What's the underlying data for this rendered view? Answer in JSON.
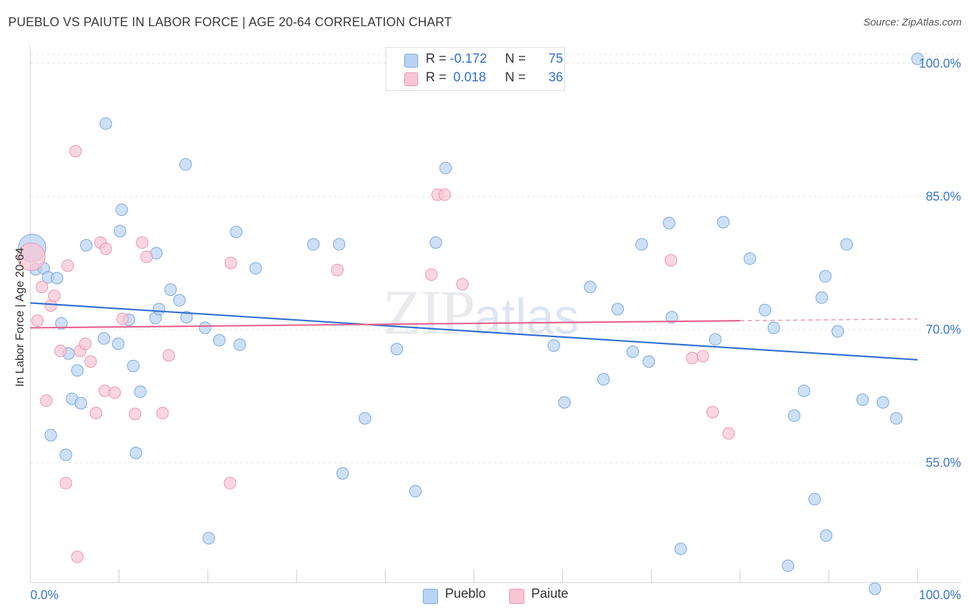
{
  "header": {
    "title": "PUEBLO VS PAIUTE IN LABOR FORCE | AGE 20-64 CORRELATION CHART",
    "source": "Source: ZipAtlas.com"
  },
  "watermark": {
    "zip": "ZIP",
    "atlas": "atlas"
  },
  "legend": {
    "rows": [
      {
        "r_label": "R =",
        "r_value": "-0.172",
        "n_label": "N =",
        "n_value": "75"
      },
      {
        "r_label": "R =",
        "r_value": "0.018",
        "n_label": "N =",
        "n_value": "36"
      }
    ]
  },
  "bottom_legend": {
    "pueblo": "Pueblo",
    "paiute": "Paiute"
  },
  "colors": {
    "pueblo_fill": "#b8d3f2",
    "pueblo_stroke": "#7aa6de",
    "pueblo_line": "#2f6fd0",
    "paiute_fill": "#f8c5d4",
    "paiute_stroke": "#e995b0",
    "paiute_line": "#e8628e",
    "tick_label": "#3b78d0",
    "grid": "#e2e2e2"
  },
  "chart_data": {
    "type": "scatter",
    "title": "PUEBLO VS PAIUTE IN LABOR FORCE | AGE 20-64 CORRELATION CHART",
    "xlabel": "",
    "ylabel": "In Labor Force | Age 20-64",
    "xlim": [
      0,
      100
    ],
    "ylim": [
      41.5,
      102
    ],
    "x_tick_labels": [
      "0.0%",
      "100.0%"
    ],
    "y_ticks": [
      55,
      70,
      85,
      100
    ],
    "y_tick_labels": [
      "55.0%",
      "70.0%",
      "85.0%",
      "100.0%"
    ],
    "grid": true,
    "series": [
      {
        "name": "Pueblo",
        "r": -0.172,
        "n": 75,
        "trend": {
          "x": [
            0,
            100
          ],
          "y": [
            73.0,
            66.6
          ]
        },
        "points": [
          [
            0.2,
            79.2,
            "big"
          ],
          [
            0.6,
            76.8
          ],
          [
            1.5,
            76.9
          ],
          [
            2.0,
            75.9
          ],
          [
            3.0,
            75.8
          ],
          [
            3.5,
            70.7
          ],
          [
            4.3,
            67.3
          ],
          [
            5.3,
            65.4
          ],
          [
            4.7,
            62.2
          ],
          [
            5.7,
            61.7
          ],
          [
            2.3,
            58.1
          ],
          [
            4.0,
            55.9
          ],
          [
            6.3,
            79.5
          ],
          [
            8.5,
            93.2
          ],
          [
            8.3,
            69.0
          ],
          [
            9.9,
            68.4
          ],
          [
            10.3,
            83.5
          ],
          [
            10.1,
            81.1
          ],
          [
            11.1,
            71.1
          ],
          [
            11.6,
            65.9
          ],
          [
            12.4,
            63.0
          ],
          [
            11.9,
            56.1
          ],
          [
            14.1,
            71.3
          ],
          [
            14.5,
            72.3
          ],
          [
            14.2,
            78.6
          ],
          [
            15.8,
            74.5
          ],
          [
            16.8,
            73.3
          ],
          [
            17.6,
            71.4
          ],
          [
            17.5,
            88.6
          ],
          [
            19.7,
            70.2
          ],
          [
            21.3,
            68.8
          ],
          [
            23.2,
            81.0
          ],
          [
            23.6,
            68.3
          ],
          [
            25.4,
            76.9
          ],
          [
            20.1,
            46.5
          ],
          [
            31.9,
            79.6
          ],
          [
            34.8,
            79.6
          ],
          [
            35.2,
            53.8
          ],
          [
            37.7,
            60.0
          ],
          [
            41.3,
            67.8
          ],
          [
            43.4,
            51.8
          ],
          [
            45.7,
            79.8
          ],
          [
            46.8,
            88.2
          ],
          [
            59.0,
            68.2
          ],
          [
            60.2,
            61.8
          ],
          [
            63.1,
            74.8
          ],
          [
            64.6,
            64.4
          ],
          [
            66.2,
            72.3
          ],
          [
            67.9,
            67.5
          ],
          [
            69.7,
            66.4
          ],
          [
            68.9,
            79.6
          ],
          [
            72.0,
            82.0
          ],
          [
            72.3,
            71.4
          ],
          [
            73.3,
            45.3
          ],
          [
            77.2,
            68.9
          ],
          [
            78.1,
            82.1
          ],
          [
            81.1,
            78.0
          ],
          [
            82.8,
            72.2
          ],
          [
            83.8,
            70.2
          ],
          [
            85.4,
            43.4
          ],
          [
            86.1,
            60.3
          ],
          [
            87.2,
            63.1
          ],
          [
            88.4,
            50.9
          ],
          [
            89.2,
            73.6
          ],
          [
            89.6,
            76.0
          ],
          [
            89.7,
            46.8
          ],
          [
            91.0,
            69.8
          ],
          [
            92.0,
            79.6
          ],
          [
            93.8,
            62.1
          ],
          [
            95.2,
            40.8
          ],
          [
            96.1,
            61.8
          ],
          [
            97.6,
            60.0
          ],
          [
            100,
            100.5
          ],
          [
            42.4,
            100.5
          ]
        ]
      },
      {
        "name": "Paiute",
        "r": 0.018,
        "n": 36,
        "trend": {
          "x": [
            0,
            80
          ],
          "y": [
            70.2,
            71.0
          ]
        },
        "trend_dashed": {
          "x": [
            80,
            100
          ],
          "y": [
            71.0,
            71.2
          ]
        },
        "points": [
          [
            0.1,
            78.2,
            "big"
          ],
          [
            0.8,
            71.0
          ],
          [
            1.3,
            74.8
          ],
          [
            1.8,
            62.0
          ],
          [
            2.3,
            72.7
          ],
          [
            2.7,
            73.8
          ],
          [
            3.4,
            67.6
          ],
          [
            4.0,
            52.7
          ],
          [
            4.2,
            77.2
          ],
          [
            5.1,
            90.1
          ],
          [
            5.3,
            44.4
          ],
          [
            5.6,
            67.6
          ],
          [
            6.2,
            68.4
          ],
          [
            6.8,
            66.4
          ],
          [
            7.4,
            60.6
          ],
          [
            7.9,
            79.8
          ],
          [
            8.5,
            79.1
          ],
          [
            8.4,
            63.1
          ],
          [
            9.5,
            62.9
          ],
          [
            10.4,
            71.2
          ],
          [
            11.8,
            60.5
          ],
          [
            12.6,
            79.8
          ],
          [
            13.1,
            78.2
          ],
          [
            14.9,
            60.6
          ],
          [
            15.6,
            67.1
          ],
          [
            22.6,
            77.5
          ],
          [
            22.5,
            52.7
          ],
          [
            34.6,
            76.7
          ],
          [
            45.2,
            76.2
          ],
          [
            45.9,
            85.2
          ],
          [
            46.7,
            85.2
          ],
          [
            48.7,
            75.1
          ],
          [
            72.2,
            77.8
          ],
          [
            74.6,
            66.8
          ],
          [
            75.8,
            67.0
          ],
          [
            76.9,
            60.7
          ],
          [
            78.7,
            58.3
          ]
        ]
      }
    ]
  }
}
